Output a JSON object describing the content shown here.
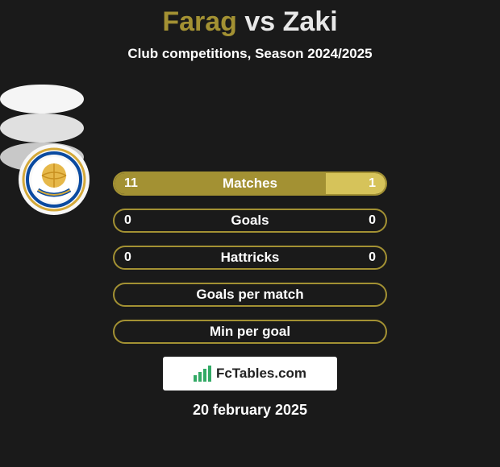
{
  "title": {
    "player1": "Farag",
    "vs": "vs",
    "player2": "Zaki",
    "color1": "#a39133",
    "color_vs": "#e8e8e8",
    "color2": "#e8e8e8"
  },
  "subtitle": "Club competitions, Season 2024/2025",
  "colors": {
    "player1_accent": "#a39133",
    "player2_accent": "#d6c35a",
    "bar_border": "#a39133",
    "background": "#1a1a1a",
    "text": "#ffffff"
  },
  "bars": [
    {
      "label": "Matches",
      "left": "11",
      "right": "1",
      "left_pct": 78,
      "right_pct": 22,
      "show_values": true
    },
    {
      "label": "Goals",
      "left": "0",
      "right": "0",
      "left_pct": 0,
      "right_pct": 0,
      "show_values": true
    },
    {
      "label": "Hattricks",
      "left": "0",
      "right": "0",
      "left_pct": 0,
      "right_pct": 0,
      "show_values": true
    },
    {
      "label": "Goals per match",
      "left": "",
      "right": "",
      "left_pct": 0,
      "right_pct": 0,
      "show_values": false
    },
    {
      "label": "Min per goal",
      "left": "",
      "right": "",
      "left_pct": 0,
      "right_pct": 0,
      "show_values": false
    }
  ],
  "footer": {
    "brand": "FcTables.com",
    "date": "20 february 2025"
  },
  "club_logo": {
    "outer": "#d4a93a",
    "ring": "#0a4aa0",
    "inner": "#ffffff",
    "globe": "#e6b84a"
  }
}
